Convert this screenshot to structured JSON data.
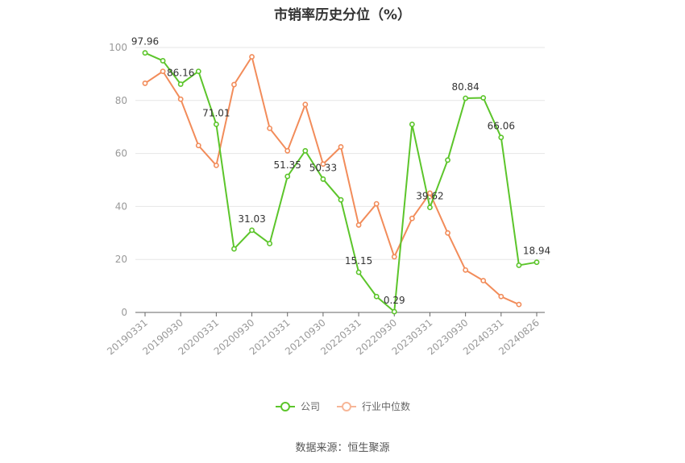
{
  "title": "市销率历史分位（%）",
  "source": "数据来源：恒生聚源",
  "colors": {
    "company": "#5cc52b",
    "industry": "#f28c5a",
    "grid": "#e6e6e6",
    "axis": "#999999"
  },
  "chart_data": {
    "type": "line",
    "x_tick_labels": [
      "20190331",
      "20190930",
      "20200331",
      "20200930",
      "20210331",
      "20210930",
      "20220331",
      "20220930",
      "20230331",
      "20230930",
      "20240331",
      "20240826"
    ],
    "ylim": [
      0,
      100
    ],
    "y_ticks": [
      0,
      20,
      40,
      60,
      80,
      100
    ],
    "grid": true,
    "legend_position": "bottom",
    "series": [
      {
        "name": "公司",
        "color": "#5cc52b",
        "values": [
          97.96,
          95.0,
          86.16,
          91.0,
          71.01,
          24.0,
          31.03,
          26.0,
          51.35,
          61.0,
          50.33,
          42.5,
          15.15,
          6.0,
          0.29,
          71.0,
          39.62,
          57.5,
          80.84,
          81.0,
          66.06,
          17.8,
          18.94
        ],
        "labels": [
          "97.96",
          "",
          "86.16",
          "",
          "71.01",
          "",
          "31.03",
          "",
          "51.35",
          "",
          "50.33",
          "",
          "15.15",
          "",
          "0.29",
          "",
          "39.62",
          "",
          "80.84",
          "",
          "66.06",
          "",
          "18.94"
        ]
      },
      {
        "name": "行业中位数",
        "color": "#f28c5a",
        "values": [
          86.5,
          91.0,
          80.5,
          63.0,
          55.5,
          86.0,
          96.5,
          69.5,
          61.0,
          78.5,
          56.0,
          62.5,
          33.0,
          41.0,
          21.0,
          35.5,
          45.0,
          30.0,
          16.0,
          12.0,
          6.0,
          3.0
        ]
      }
    ]
  }
}
